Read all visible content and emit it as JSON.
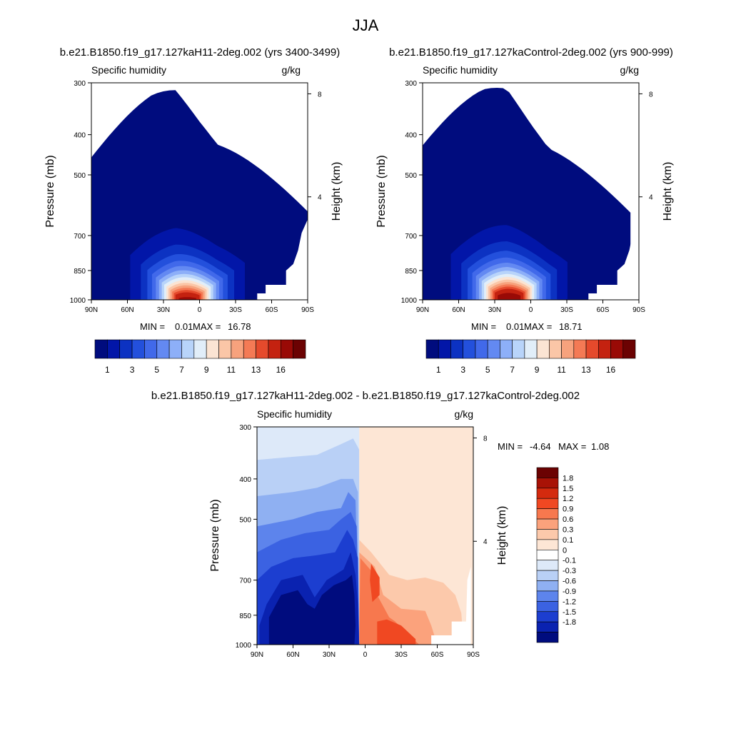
{
  "figure": {
    "title": "JJA",
    "diff_title": "b.e21.B1850.f19_g17.127kaH11-2deg.002 - b.e21.B1850.f19_g17.127kaControl-2deg.002"
  },
  "chart_data": [
    {
      "type": "heatmap",
      "run_title": "b.e21.B1850.f19_g17.127kaH11-2deg.002 (yrs 3400-3499)",
      "left_label": "Specific humidity",
      "right_label": "g/kg",
      "ylabel": "Pressure (mb)",
      "ylabel_right": "Height (km)",
      "x_ticks": [
        "90N",
        "60N",
        "30N",
        "0",
        "30S",
        "60S",
        "90S"
      ],
      "y_ticks": [
        "300",
        "400",
        "500",
        "700",
        "850",
        "1000"
      ],
      "y_right_ticks": [
        "8",
        "4"
      ],
      "xlim": [
        90,
        -90
      ],
      "ylim": [
        1000,
        300
      ],
      "y_scale": "log",
      "min_label": "MIN =",
      "min": "0.01",
      "max_label": "MAX =",
      "max": "16.78",
      "colorbar_levels": [
        "1",
        "3",
        "5",
        "7",
        "9",
        "11",
        "13",
        "16"
      ],
      "colors": [
        "#000c7e",
        "#0216a8",
        "#0c32c2",
        "#2350dc",
        "#4169ea",
        "#6389f2",
        "#8daff8",
        "#b8d4fa",
        "#e1eef9",
        "#fbe4d3",
        "#fbc6a7",
        "#f7a27d",
        "#f47a55",
        "#e54a2c",
        "#c42210",
        "#990a06",
        "#6b0202"
      ],
      "peak": {
        "lat": 10,
        "value": 16.78
      },
      "ridge": [
        [
          -15,
          410
        ],
        [
          0,
          370
        ],
        [
          20,
          310
        ],
        [
          40,
          300
        ]
      ]
    },
    {
      "type": "heatmap",
      "run_title": "b.e21.B1850.f19_g17.127kaControl-2deg.002 (yrs 900-999)",
      "left_label": "Specific humidity",
      "right_label": "g/kg",
      "ylabel": "Pressure (mb)",
      "ylabel_right": "Height (km)",
      "x_ticks": [
        "90N",
        "60N",
        "30N",
        "0",
        "30S",
        "60S",
        "90S"
      ],
      "y_ticks": [
        "300",
        "400",
        "500",
        "700",
        "850",
        "1000"
      ],
      "y_right_ticks": [
        "8",
        "4"
      ],
      "xlim": [
        90,
        -90
      ],
      "ylim": [
        1000,
        300
      ],
      "y_scale": "log",
      "min_label": "MIN =",
      "min": "0.01",
      "max_label": "MAX =",
      "max": "18.71",
      "colorbar_levels": [
        "1",
        "3",
        "5",
        "7",
        "9",
        "11",
        "13",
        "16"
      ],
      "colors": [
        "#000c7e",
        "#0216a8",
        "#0c32c2",
        "#2350dc",
        "#4169ea",
        "#6389f2",
        "#8daff8",
        "#b8d4fa",
        "#e1eef9",
        "#fbe4d3",
        "#fbc6a7",
        "#f7a27d",
        "#f47a55",
        "#e54a2c",
        "#c42210",
        "#990a06",
        "#6b0202"
      ],
      "peak": {
        "lat": 18,
        "value": 18.71
      },
      "ridge": [
        [
          -15,
          410
        ],
        [
          0,
          370
        ],
        [
          20,
          310
        ],
        [
          40,
          300
        ]
      ]
    },
    {
      "type": "heatmap",
      "left_label": "Specific humidity",
      "right_label": "g/kg",
      "ylabel": "Pressure (mb)",
      "ylabel_right": "Height (km)",
      "x_ticks": [
        "90N",
        "60N",
        "30N",
        "0",
        "30S",
        "60S",
        "90S"
      ],
      "y_ticks": [
        "300",
        "400",
        "500",
        "700",
        "850",
        "1000"
      ],
      "y_right_ticks": [
        "8",
        "4"
      ],
      "xlim": [
        90,
        -90
      ],
      "ylim": [
        1000,
        300
      ],
      "y_scale": "log",
      "min_label": "MIN =",
      "min": "-4.64",
      "max_label": "MAX =",
      "max": "1.08",
      "colorbar_levels": [
        "1.8",
        "1.5",
        "1.2",
        "0.9",
        "0.6",
        "0.3",
        "0.1",
        "0",
        "-0.1",
        "-0.3",
        "-0.6",
        "-0.9",
        "-1.2",
        "-1.5",
        "-1.8"
      ],
      "colors": [
        "#6b0202",
        "#a81206",
        "#d42a0e",
        "#f04822",
        "#f7784e",
        "#fba27c",
        "#fcc9ab",
        "#fde6d5",
        "#ffffff",
        "#dde9f9",
        "#b9d0f6",
        "#8fb0f2",
        "#5d84ec",
        "#3b62e2",
        "#1c3ed0",
        "#0a22b0",
        "#000c7e"
      ]
    }
  ]
}
